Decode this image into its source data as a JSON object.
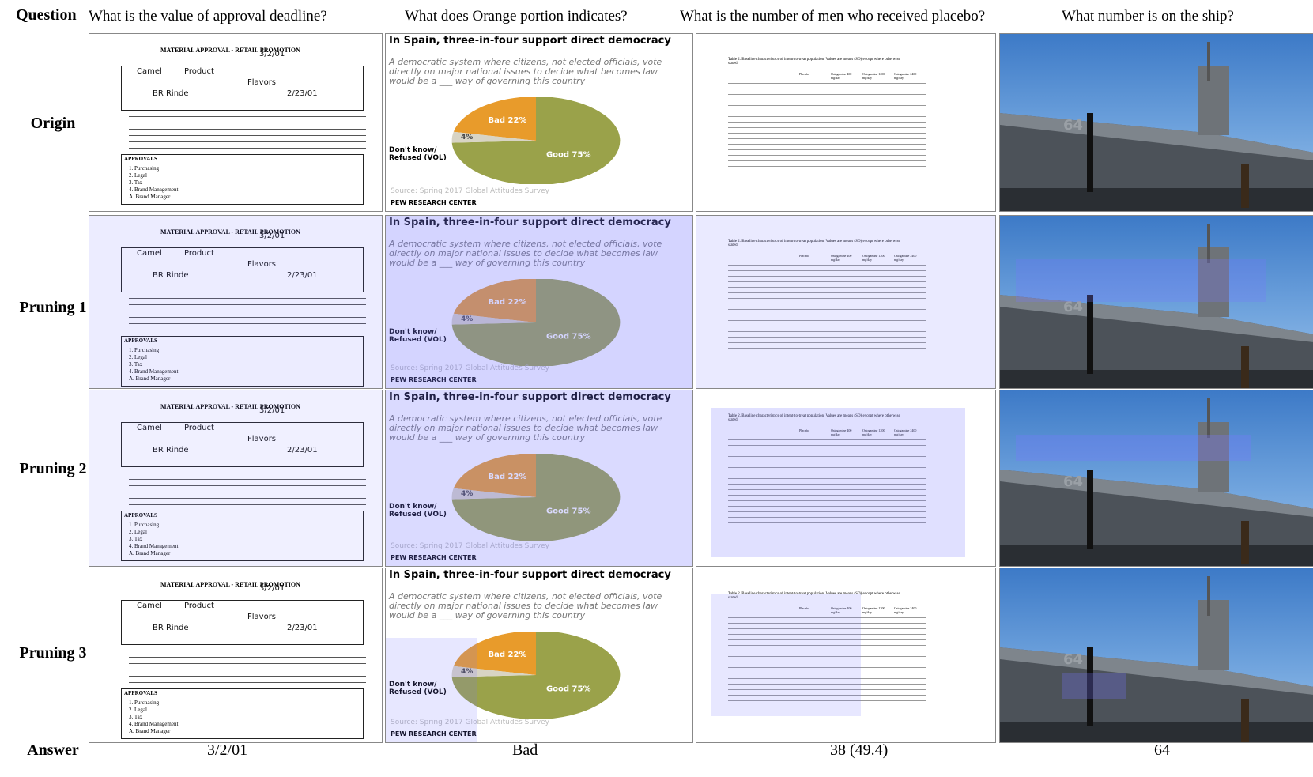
{
  "header": {
    "question_label": "Question",
    "answer_label": "Answer"
  },
  "questions": [
    "What is the value of approval deadline?",
    "What does Orange portion indicates?",
    "What is the number of men who received placebo?",
    "What number is on the ship?"
  ],
  "rows": [
    "Origin",
    "Pruning 1",
    "Pruning 2",
    "Pruning 3"
  ],
  "answers": [
    "3/2/01",
    "Bad",
    "38 (49.4)",
    "64"
  ],
  "form": {
    "title": "MATERIAL APPROVAL - RETAIL PROMOTION",
    "handwriting": [
      "Camel",
      "Product",
      "Flavors",
      "3/2/01",
      "BR Rinde",
      "2/23/01"
    ],
    "approvals_label": "APPROVALS",
    "rows": [
      "1. Purchasing",
      "2. Legal",
      "3. Tax",
      "4. Brand Management",
      "A. Brand Manager"
    ]
  },
  "chart": {
    "title": "In Spain, three-in-four support direct democracy",
    "subtitle": "A democratic system where citizens, not elected officials, vote directly on major national issues to decide what becomes law would be a ___ way of governing this country",
    "source": "Source: Spring 2017 Global Attitudes Survey",
    "org": "PEW RESEARCH CENTER",
    "dont_know": "Don't know/ Refused (VOL)",
    "chart_data": {
      "type": "pie",
      "slices": [
        {
          "label": "Good",
          "value": 75,
          "color": "#9aa24a"
        },
        {
          "label": "Bad",
          "value": 22,
          "color": "#e89b2b"
        },
        {
          "label": "Don't know/Refused (VOL)",
          "value": 4,
          "color": "#d8d4c4"
        }
      ]
    }
  },
  "table": {
    "caption": "Table 2. Baseline characteristics of intent-to-treat population. Values are means (SD) except where otherwise stated.",
    "columns": [
      "Placebo",
      "Ostogamine 400 mg/day",
      "Ostogamine 1200 mg/day",
      "Ostogamine 2400 mg/day"
    ]
  },
  "ship": {
    "hull_number": "64"
  }
}
